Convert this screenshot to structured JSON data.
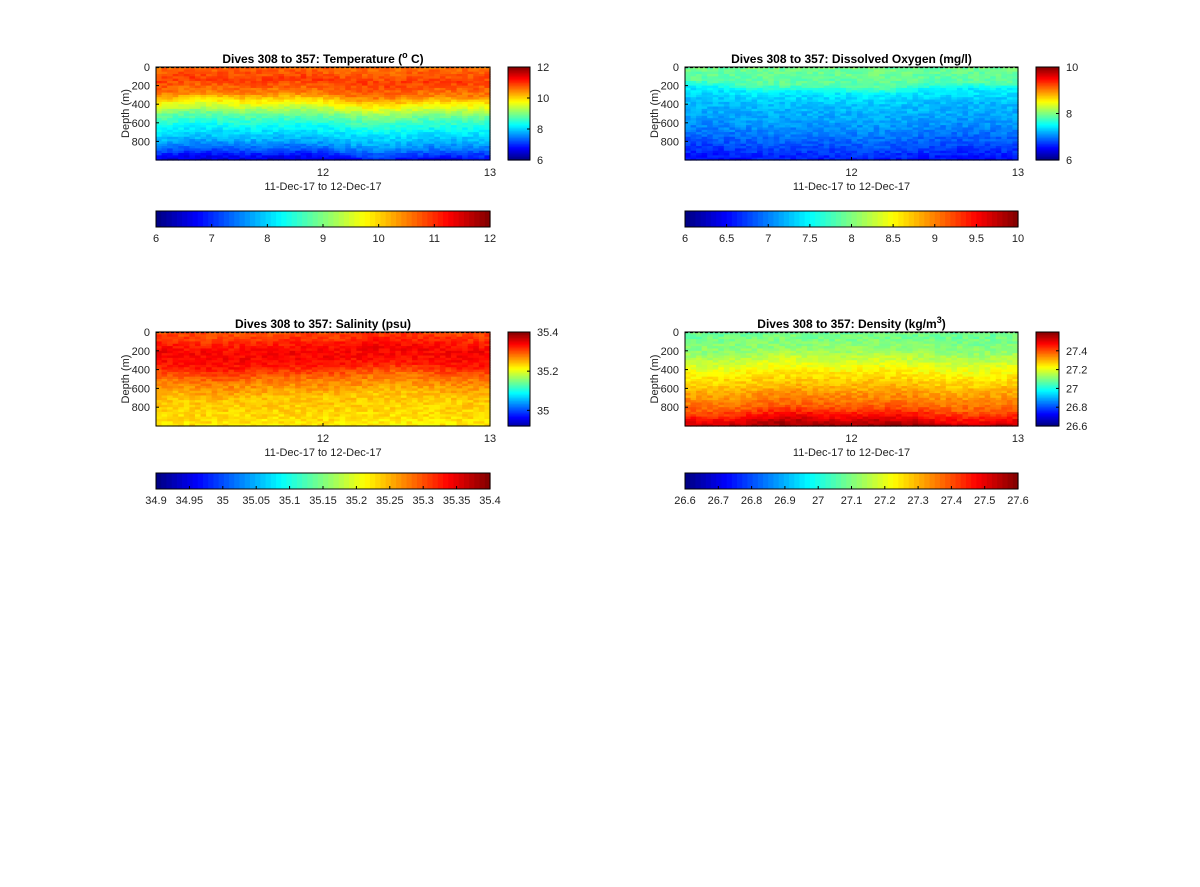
{
  "chart_data": [
    {
      "type": "heatmap",
      "title": "Dives 308 to 357: Temperature (",
      "title_super": "o",
      "title_tail": " C)",
      "xlabel": "11-Dec-17 to 12-Dec-17",
      "ylabel": "Depth (m)",
      "x_ticks": [
        "12",
        "13"
      ],
      "y_ticks": [
        "0",
        "200",
        "400",
        "600",
        "800"
      ],
      "xlim": [
        11,
        13
      ],
      "ylim": [
        0,
        1000
      ],
      "clim": [
        6,
        12
      ],
      "colorbar_ticks": [
        "6",
        "8",
        "10",
        "12"
      ],
      "hbar_ticks": [
        "6",
        "7",
        "8",
        "9",
        "10",
        "11",
        "12"
      ],
      "profile": [
        [
          0,
          10.6
        ],
        [
          150,
          10.9
        ],
        [
          300,
          10.5
        ],
        [
          420,
          9.6
        ],
        [
          520,
          8.9
        ],
        [
          650,
          8.3
        ],
        [
          800,
          7.8
        ],
        [
          900,
          7.3
        ],
        [
          1000,
          6.6
        ]
      ]
    },
    {
      "type": "heatmap",
      "title": "Dives 308 to 357: Dissolved Oxygen (mg/l)",
      "xlabel": "11-Dec-17 to 12-Dec-17",
      "ylabel": "Depth (m)",
      "x_ticks": [
        "12",
        "13"
      ],
      "y_ticks": [
        "0",
        "200",
        "400",
        "600",
        "800"
      ],
      "xlim": [
        11,
        13
      ],
      "ylim": [
        0,
        1000
      ],
      "clim": [
        6,
        10
      ],
      "colorbar_ticks": [
        "6",
        "8",
        "10"
      ],
      "hbar_ticks": [
        "6",
        "6.5",
        "7",
        "7.5",
        "8",
        "8.5",
        "9",
        "9.5",
        "10"
      ],
      "profile": [
        [
          0,
          7.95
        ],
        [
          180,
          7.85
        ],
        [
          260,
          7.45
        ],
        [
          400,
          7.25
        ],
        [
          550,
          7.15
        ],
        [
          700,
          7.0
        ],
        [
          850,
          6.8
        ],
        [
          1000,
          6.55
        ]
      ]
    },
    {
      "type": "heatmap",
      "title": "Dives 308 to 357: Salinity (psu)",
      "xlabel": "11-Dec-17 to 12-Dec-17",
      "ylabel": "Depth (m)",
      "x_ticks": [
        "12",
        "13"
      ],
      "y_ticks": [
        "0",
        "200",
        "400",
        "600",
        "800"
      ],
      "xlim": [
        11,
        13
      ],
      "ylim": [
        0,
        1000
      ],
      "clim": [
        34.9,
        35.4
      ],
      "cbar_clim": [
        34.92,
        35.4
      ],
      "colorbar_ticks": [
        "35",
        "35.2",
        "35.4"
      ],
      "hbar_ticks": [
        "34.9",
        "34.95",
        "35",
        "35.05",
        "35.1",
        "35.15",
        "35.2",
        "35.25",
        "35.3",
        "35.35",
        "35.4"
      ],
      "profile": [
        [
          0,
          35.3
        ],
        [
          200,
          35.34
        ],
        [
          350,
          35.33
        ],
        [
          500,
          35.28
        ],
        [
          700,
          35.24
        ],
        [
          900,
          35.23
        ],
        [
          1000,
          35.22
        ]
      ]
    },
    {
      "type": "heatmap",
      "title": "Dives 308 to 357: Density (kg/m",
      "title_super": "3",
      "title_tail": ")",
      "xlabel": "11-Dec-17 to 12-Dec-17",
      "ylabel": "Depth (m)",
      "x_ticks": [
        "12",
        "13"
      ],
      "y_ticks": [
        "0",
        "200",
        "400",
        "600",
        "800"
      ],
      "xlim": [
        11,
        13
      ],
      "ylim": [
        0,
        1000
      ],
      "clim": [
        26.6,
        27.6
      ],
      "colorbar_ticks": [
        "26.6",
        "26.8",
        "27",
        "27.2",
        "27.4"
      ],
      "hbar_ticks": [
        "26.6",
        "26.7",
        "26.8",
        "26.9",
        "27",
        "27.1",
        "27.2",
        "27.3",
        "27.4",
        "27.5",
        "27.6"
      ],
      "profile": [
        [
          0,
          27.08
        ],
        [
          200,
          27.12
        ],
        [
          400,
          27.22
        ],
        [
          600,
          27.3
        ],
        [
          800,
          27.38
        ],
        [
          900,
          27.46
        ],
        [
          1000,
          27.56
        ]
      ]
    }
  ]
}
